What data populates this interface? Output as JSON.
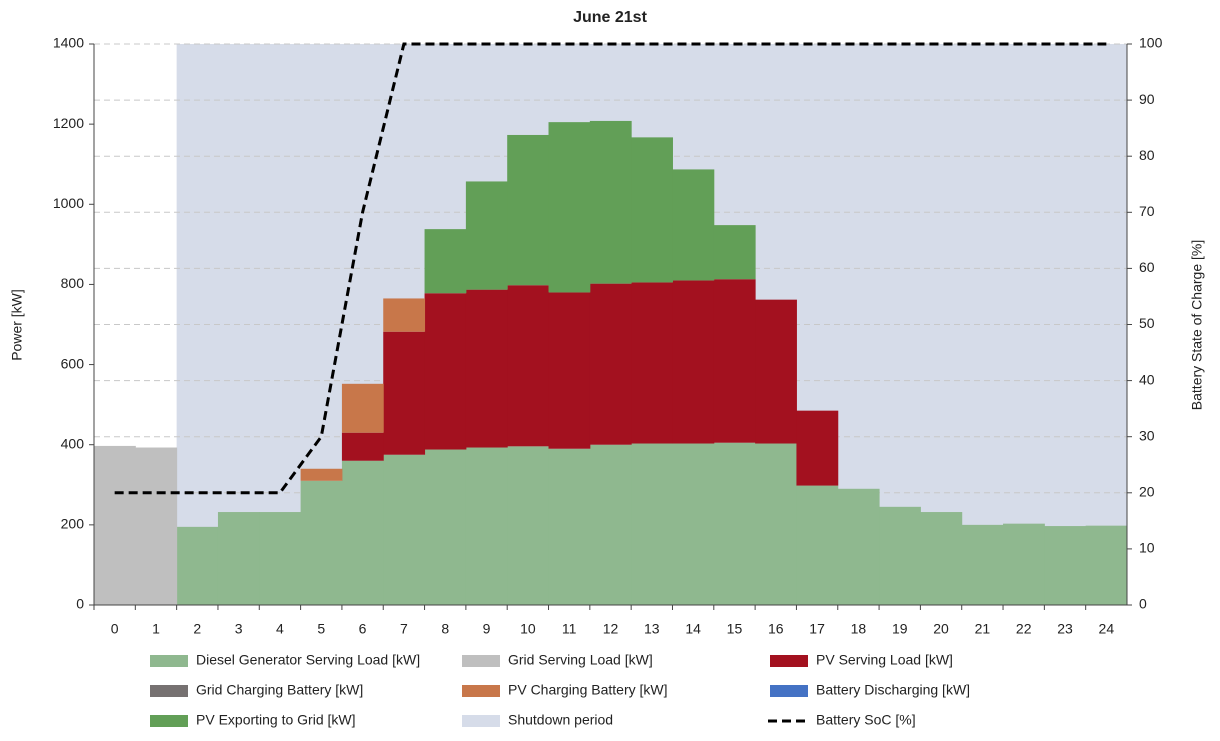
{
  "chart_data": {
    "type": "area",
    "stacked": true,
    "step": true,
    "title": "June 21st",
    "ylabel": "Power [kW]",
    "y2label": "Battery State of Charge [%]",
    "x": [
      0,
      1,
      2,
      3,
      4,
      5,
      6,
      7,
      8,
      9,
      10,
      11,
      12,
      13,
      14,
      15,
      16,
      17,
      18,
      19,
      20,
      21,
      22,
      23,
      24
    ],
    "xlim": [
      -0.5,
      24.5
    ],
    "xticks": [
      0,
      1,
      2,
      3,
      4,
      5,
      6,
      7,
      8,
      9,
      10,
      11,
      12,
      13,
      14,
      15,
      16,
      17,
      18,
      19,
      20,
      21,
      22,
      23,
      24
    ],
    "ylim": [
      0,
      1400
    ],
    "yticks": [
      0,
      200,
      400,
      600,
      800,
      1000,
      1200,
      1400
    ],
    "y2lim": [
      0,
      100
    ],
    "y2ticks": [
      0,
      10,
      20,
      30,
      40,
      50,
      60,
      70,
      80,
      90,
      100
    ],
    "grid": true,
    "legend": "bottom",
    "shutdown_period": {
      "name": "Shutdown period",
      "color": "#d6dce9",
      "from": 1.5,
      "to": 24.5
    },
    "series": [
      {
        "name": "Diesel Generator Serving Load [kW]",
        "color": "#8fb88f",
        "values": [
          0,
          0,
          195,
          232,
          232,
          310,
          360,
          375,
          388,
          393,
          396,
          390,
          400,
          403,
          403,
          405,
          403,
          298,
          290,
          245,
          232,
          200,
          203,
          197,
          198
        ]
      },
      {
        "name": "Grid Serving Load [kW]",
        "color": "#bfbfbf",
        "values": [
          397,
          393,
          0,
          0,
          0,
          0,
          0,
          0,
          0,
          0,
          0,
          0,
          0,
          0,
          0,
          0,
          0,
          0,
          0,
          0,
          0,
          0,
          0,
          0,
          0
        ]
      },
      {
        "name": "PV Serving Load [kW]",
        "color": "#a3111f",
        "values": [
          0,
          0,
          0,
          0,
          0,
          0,
          70,
          307,
          390,
          394,
          402,
          390,
          402,
          402,
          407,
          408,
          359,
          187,
          0,
          0,
          0,
          0,
          0,
          0,
          0
        ]
      },
      {
        "name": "Grid Charging Battery [kW]",
        "color": "#767171",
        "values": [
          0,
          0,
          0,
          0,
          0,
          0,
          0,
          0,
          0,
          0,
          0,
          0,
          0,
          0,
          0,
          0,
          0,
          0,
          0,
          0,
          0,
          0,
          0,
          0,
          0
        ]
      },
      {
        "name": "PV Charging Battery [kW]",
        "color": "#c8774a",
        "values": [
          0,
          0,
          0,
          0,
          0,
          30,
          122,
          83,
          0,
          0,
          0,
          0,
          0,
          0,
          0,
          0,
          0,
          0,
          0,
          0,
          0,
          0,
          0,
          0,
          0
        ]
      },
      {
        "name": "Battery Discharging [kW]",
        "color": "#4472c4",
        "values": [
          0,
          0,
          0,
          0,
          0,
          0,
          0,
          0,
          0,
          0,
          0,
          0,
          0,
          0,
          0,
          0,
          0,
          0,
          0,
          0,
          0,
          0,
          0,
          0,
          0
        ]
      },
      {
        "name": "PV Exporting to Grid [kW]",
        "color": "#629f57",
        "values": [
          0,
          0,
          0,
          0,
          0,
          0,
          0,
          0,
          160,
          270,
          375,
          425,
          406,
          362,
          277,
          135,
          0,
          0,
          0,
          0,
          0,
          0,
          0,
          0,
          0
        ]
      },
      {
        "name": "Battery SoC [%]",
        "color": "#000000",
        "axis": "y2",
        "type": "line",
        "dashed": true,
        "values": [
          20,
          20,
          20,
          20,
          20,
          30,
          70,
          100,
          100,
          100,
          100,
          100,
          100,
          100,
          100,
          100,
          100,
          100,
          100,
          100,
          100,
          100,
          100,
          100,
          100
        ]
      }
    ]
  }
}
